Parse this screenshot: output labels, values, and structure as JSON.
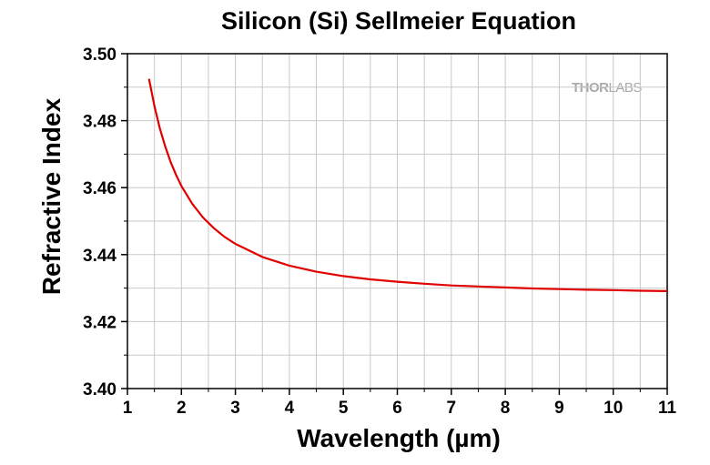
{
  "chart_data": {
    "type": "line",
    "title": "Silicon (Si) Sellmeier Equation",
    "xlabel": "Wavelength (µm)",
    "ylabel": "Refractive Index",
    "xlim": [
      1,
      11
    ],
    "ylim": [
      3.4,
      3.5
    ],
    "xticks": [
      "1",
      "2",
      "3",
      "4",
      "5",
      "6",
      "7",
      "8",
      "9",
      "10",
      "11"
    ],
    "yticks": [
      "3.40",
      "3.42",
      "3.44",
      "3.46",
      "3.48",
      "3.50"
    ],
    "grid": true,
    "series": [
      {
        "color": "#e00000",
        "x": [
          1.4,
          1.5,
          1.6,
          1.7,
          1.8,
          1.9,
          2.0,
          2.2,
          2.4,
          2.6,
          2.8,
          3.0,
          3.5,
          4.0,
          4.5,
          5.0,
          5.5,
          6.0,
          6.5,
          7.0,
          7.5,
          8.0,
          8.5,
          9.0,
          9.5,
          10.0,
          10.5,
          11.0
        ],
        "y": [
          3.4925,
          3.4843,
          3.4777,
          3.4723,
          3.4677,
          3.4638,
          3.4605,
          3.4552,
          3.4511,
          3.4479,
          3.4453,
          3.4432,
          3.4393,
          3.4367,
          3.4349,
          3.4336,
          3.4326,
          3.4319,
          3.4313,
          3.4308,
          3.4305,
          3.4302,
          3.4299,
          3.4297,
          3.4295,
          3.4294,
          3.4292,
          3.4291
        ]
      }
    ]
  },
  "watermark": {
    "bold": "THOR",
    "thin": "LABS"
  }
}
